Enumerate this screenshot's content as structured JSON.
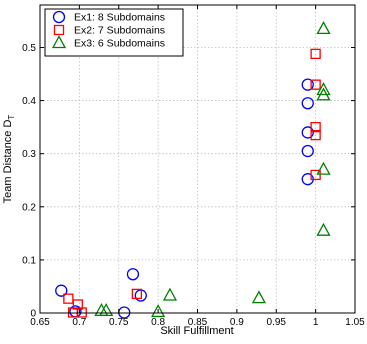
{
  "chart_data": {
    "type": "scatter",
    "xlabel": "Skill Fulfillment",
    "ylabel": "Team Distance D",
    "ylabel_subscript": "T",
    "xlim": [
      0.65,
      1.05
    ],
    "ylim": [
      0,
      0.58
    ],
    "xticks": [
      0.65,
      0.7,
      0.75,
      0.8,
      0.85,
      0.9,
      0.95,
      1,
      1.05
    ],
    "xtick_labels": [
      "0.65",
      "0.7",
      "0.75",
      "0.8",
      "0.85",
      "0.9",
      "0.95",
      "1",
      "1.05"
    ],
    "yticks": [
      0,
      0.1,
      0.2,
      0.3,
      0.4,
      0.5
    ],
    "ytick_labels": [
      "0",
      "0.1",
      "0.2",
      "0.3",
      "0.4",
      "0.5"
    ],
    "grid": true,
    "legend_position": "top-left",
    "series": [
      {
        "name": "Ex1: 8 Subdomains",
        "marker": "circle",
        "color": "#0000ff",
        "points": [
          [
            0.677,
            0.042
          ],
          [
            0.695,
            0.003
          ],
          [
            0.757,
            0.001
          ],
          [
            0.768,
            0.073
          ],
          [
            0.778,
            0.033
          ],
          [
            0.99,
            0.43
          ],
          [
            0.99,
            0.395
          ],
          [
            0.99,
            0.34
          ],
          [
            0.99,
            0.305
          ],
          [
            0.99,
            0.252
          ]
        ]
      },
      {
        "name": "Ex2: 7 Subdomains",
        "marker": "square",
        "color": "#ff0000",
        "points": [
          [
            0.686,
            0.027
          ],
          [
            0.692,
            0.001
          ],
          [
            0.698,
            0.016
          ],
          [
            0.703,
            0.001
          ],
          [
            0.773,
            0.036
          ],
          [
            1.0,
            0.488
          ],
          [
            1.0,
            0.43
          ],
          [
            1.0,
            0.35
          ],
          [
            1.0,
            0.335
          ],
          [
            1.0,
            0.26
          ]
        ]
      },
      {
        "name": "Ex3: 6 Subdomains",
        "marker": "triangle",
        "color": "#008000",
        "points": [
          [
            0.728,
            0.004
          ],
          [
            0.734,
            0.004
          ],
          [
            0.8,
            0.002
          ],
          [
            0.815,
            0.033
          ],
          [
            0.928,
            0.028
          ],
          [
            1.01,
            0.535
          ],
          [
            1.01,
            0.42
          ],
          [
            1.01,
            0.41
          ],
          [
            1.01,
            0.27
          ],
          [
            1.01,
            0.155
          ]
        ]
      }
    ]
  }
}
